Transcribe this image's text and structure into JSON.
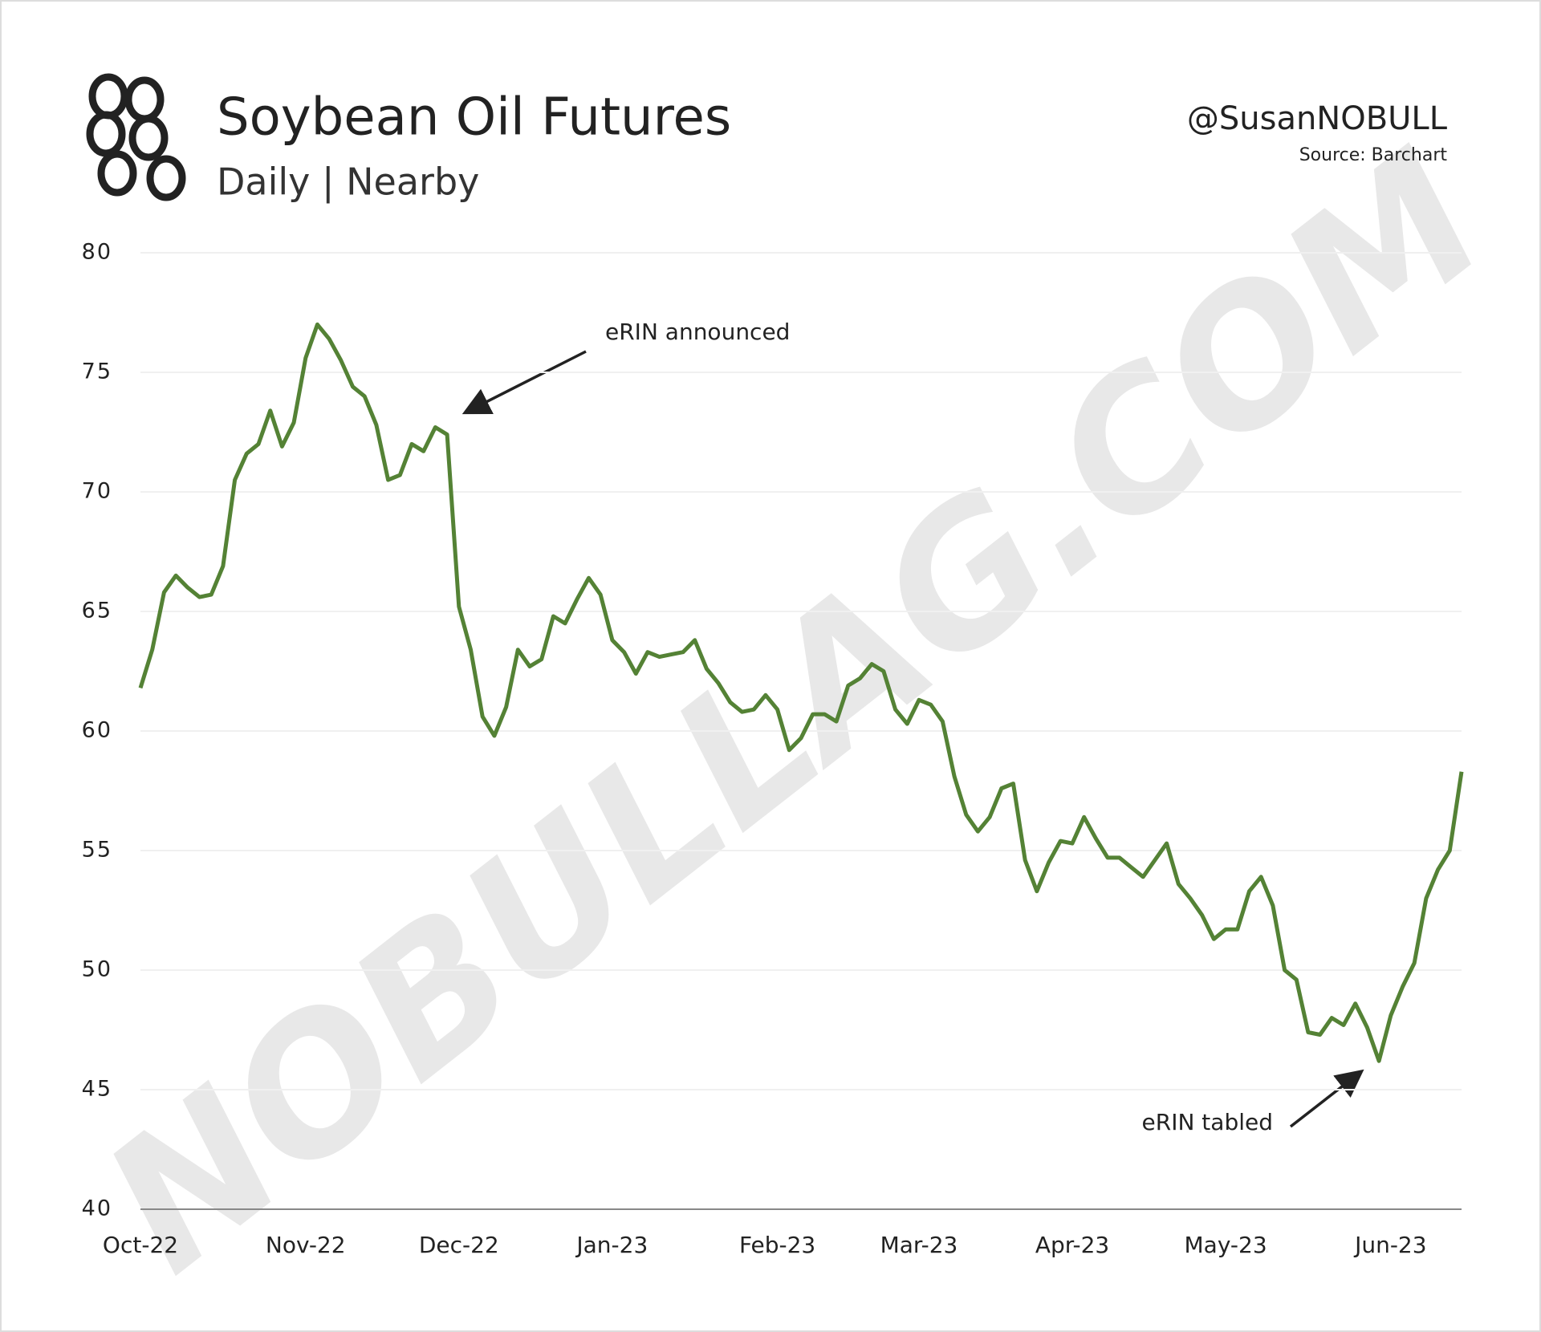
{
  "chart_data": {
    "type": "line",
    "title": "Soybean Oil Futures",
    "subtitle": "Daily | Nearby",
    "handle": "@SusanNOBULL",
    "source": "Source: Barchart",
    "watermark": "NOBULLAG.COM",
    "categories": [
      "Oct-22",
      null,
      null,
      null,
      null,
      null,
      null,
      null,
      null,
      null,
      null,
      null,
      null,
      null,
      "Nov-22",
      null,
      null,
      null,
      null,
      null,
      null,
      null,
      null,
      null,
      null,
      null,
      null,
      "Dec-22",
      null,
      null,
      null,
      null,
      null,
      null,
      null,
      null,
      null,
      null,
      null,
      null,
      "Jan-23",
      null,
      null,
      null,
      null,
      null,
      null,
      null,
      null,
      null,
      null,
      null,
      null,
      null,
      "Feb-23",
      null,
      null,
      null,
      null,
      null,
      null,
      null,
      null,
      null,
      null,
      null,
      "Mar-23",
      null,
      null,
      null,
      null,
      null,
      null,
      null,
      null,
      null,
      null,
      null,
      null,
      "Apr-23",
      null,
      null,
      null,
      null,
      null,
      null,
      null,
      null,
      null,
      null,
      null,
      null,
      "May-23",
      null,
      null,
      null,
      null,
      null,
      null,
      null,
      null,
      null,
      null,
      null,
      null,
      null,
      "Jun-23",
      null,
      null,
      null,
      null,
      null,
      null
    ],
    "series": [
      {
        "name": "Soybean Oil Futures",
        "color": "#548235",
        "values": [
          61.8,
          63.4,
          65.8,
          66.5,
          66,
          65.6,
          65.7,
          66.9,
          70.5,
          71.6,
          72,
          73.4,
          71.9,
          72.9,
          75.6,
          77,
          76.4,
          75.5,
          74.4,
          74,
          72.8,
          70.5,
          70.7,
          72,
          71.7,
          72.7,
          72.4,
          65.2,
          63.4,
          60.6,
          59.8,
          61,
          63.4,
          62.7,
          63,
          64.8,
          64.5,
          65.5,
          66.4,
          65.7,
          63.8,
          63.3,
          62.4,
          63.3,
          63.1,
          63.2,
          63.3,
          63.8,
          62.6,
          62,
          61.2,
          60.8,
          60.9,
          61.5,
          60.9,
          59.2,
          59.7,
          60.7,
          60.7,
          60.4,
          61.9,
          62.2,
          62.8,
          62.5,
          60.9,
          60.3,
          61.3,
          61.1,
          60.4,
          58.1,
          56.5,
          55.8,
          56.4,
          57.6,
          57.8,
          54.6,
          53.3,
          54.5,
          55.4,
          55.3,
          56.4,
          55.5,
          54.7,
          54.7,
          54.3,
          53.9,
          54.6,
          55.3,
          53.6,
          53,
          52.3,
          51.3,
          51.7,
          51.7,
          53.3,
          53.9,
          52.7,
          50,
          49.6,
          47.4,
          47.3,
          48,
          47.7,
          48.6,
          47.6,
          46.2,
          48.1,
          49.3,
          50.3,
          53,
          54.2,
          55,
          58.3
        ]
      }
    ],
    "ylim": [
      40,
      80
    ],
    "yticks": [
      40,
      45,
      50,
      55,
      60,
      65,
      70,
      75,
      80
    ],
    "grid": true,
    "annotations": [
      {
        "text": "eRIN announced"
      },
      {
        "text": "eRIN tabled"
      }
    ]
  }
}
